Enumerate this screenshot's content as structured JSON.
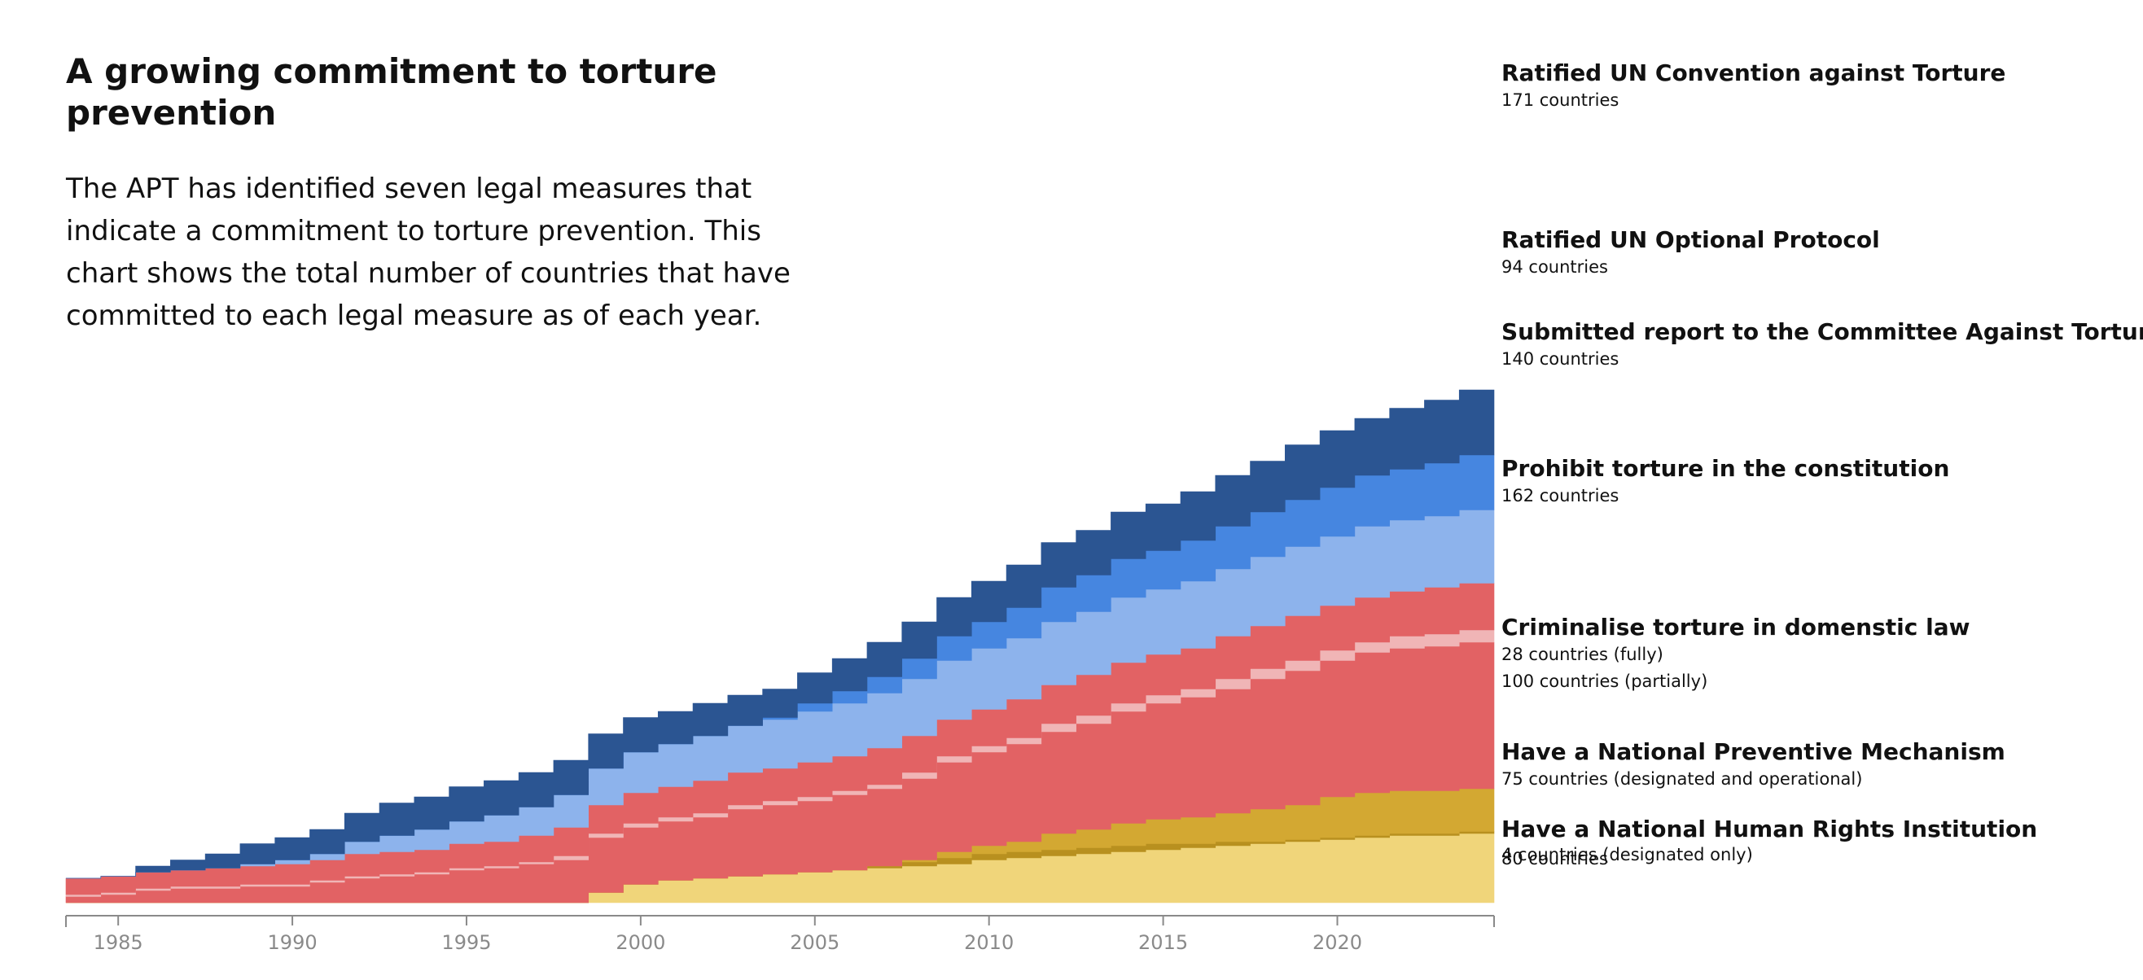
{
  "title": "A growing commitment to torture prevention",
  "subtitle": "The APT has identified seven legal measures that indicate a commitment to torture prevention. This chart shows the total number of countries that have committed to each legal measure as of each year.",
  "chart_data": {
    "type": "area",
    "title": "A growing commitment to torture prevention",
    "xlabel": "",
    "ylabel": "",
    "stacked": true,
    "step": true,
    "grid": false,
    "legend": "direct labels right",
    "xlim": [
      1983.5,
      2024.5
    ],
    "xticks": [
      1985,
      1990,
      1995,
      2000,
      2005,
      2010,
      2015,
      2020
    ],
    "x": [
      1984,
      1985,
      1986,
      1987,
      1988,
      1989,
      1990,
      1991,
      1992,
      1993,
      1994,
      1995,
      1996,
      1997,
      1998,
      1999,
      2000,
      2001,
      2002,
      2003,
      2004,
      2005,
      2006,
      2007,
      2008,
      2009,
      2010,
      2011,
      2012,
      2013,
      2014,
      2015,
      2016,
      2017,
      2018,
      2019,
      2020,
      2021,
      2022,
      2023,
      2024
    ],
    "series": [
      {
        "name": "Have a National Human Rights Institution",
        "color": "#f0d57a",
        "values": [
          0,
          0,
          0,
          0,
          0,
          0,
          0,
          0,
          0,
          0,
          0,
          0,
          0,
          0,
          0,
          5,
          9,
          11,
          12,
          13,
          14,
          15,
          16,
          17,
          18,
          19,
          21,
          22,
          23,
          24,
          25,
          26,
          27,
          28,
          29,
          30,
          31,
          32,
          33,
          33,
          34
        ]
      },
      {
        "name": "Have a National Human Rights Institution (designated only)",
        "color": "#b8901f",
        "values": [
          0,
          0,
          0,
          0,
          0,
          0,
          0,
          0,
          0,
          0,
          0,
          0,
          0,
          0,
          0,
          0,
          0,
          0,
          0,
          0,
          0,
          0,
          0,
          1,
          2,
          3,
          3,
          3,
          3,
          3,
          3,
          3,
          2,
          2,
          1,
          1,
          1,
          1,
          1,
          1,
          1
        ]
      },
      {
        "name": "Have a National Preventive Mechanism",
        "color": "#d3a832",
        "values": [
          0,
          0,
          0,
          0,
          0,
          0,
          0,
          0,
          0,
          0,
          0,
          0,
          0,
          0,
          0,
          0,
          0,
          0,
          0,
          0,
          0,
          0,
          0,
          0,
          1,
          3,
          4,
          5,
          8,
          9,
          11,
          12,
          13,
          14,
          16,
          17,
          20,
          21,
          21,
          21,
          21
        ]
      },
      {
        "name": "Criminalise torture in domestic law (partially)",
        "color": "#e26264",
        "values": [
          3,
          4,
          6,
          7,
          7,
          8,
          8,
          10,
          12,
          13,
          14,
          16,
          17,
          19,
          21,
          27,
          28,
          29,
          30,
          33,
          34,
          35,
          37,
          38,
          40,
          44,
          46,
          48,
          50,
          52,
          55,
          57,
          59,
          61,
          64,
          66,
          67,
          69,
          70,
          71,
          72
        ]
      },
      {
        "name": "Criminalise torture in domestic law (fully)",
        "color": "#f0b5b6",
        "values": [
          1,
          1,
          1,
          1,
          1,
          1,
          1,
          1,
          1,
          1,
          1,
          1,
          1,
          1,
          2,
          2,
          2,
          2,
          2,
          2,
          2,
          2,
          2,
          2,
          3,
          3,
          3,
          3,
          4,
          4,
          4,
          4,
          4,
          5,
          5,
          5,
          5,
          5,
          6,
          6,
          6
        ]
      },
      {
        "name": "Prohibit torture in the constitution",
        "color": "#e26264",
        "values": [
          8,
          8,
          8,
          8,
          9,
          9,
          10,
          10,
          11,
          11,
          11,
          12,
          12,
          13,
          14,
          14,
          15,
          15,
          16,
          16,
          16,
          17,
          17,
          18,
          18,
          18,
          18,
          19,
          19,
          20,
          20,
          20,
          20,
          21,
          21,
          22,
          22,
          22,
          22,
          23,
          23
        ]
      },
      {
        "name": "Submitted report to the Committee Against Torture",
        "color": "#8db3ec",
        "values": [
          0,
          0,
          0,
          0,
          0,
          1,
          2,
          3,
          6,
          8,
          10,
          11,
          13,
          14,
          16,
          18,
          20,
          21,
          22,
          23,
          24,
          25,
          26,
          27,
          28,
          29,
          30,
          30,
          31,
          31,
          32,
          32,
          33,
          33,
          34,
          34,
          34,
          35,
          35,
          35,
          36
        ]
      },
      {
        "name": "Ratified UN Optional Protocol",
        "color": "#4686e0",
        "values": [
          0,
          0,
          0,
          0,
          0,
          0,
          0,
          0,
          0,
          0,
          0,
          0,
          0,
          0,
          0,
          0,
          0,
          0,
          0,
          0,
          1,
          4,
          6,
          8,
          10,
          12,
          13,
          15,
          17,
          18,
          19,
          19,
          20,
          21,
          22,
          23,
          24,
          25,
          25,
          26,
          27
        ]
      },
      {
        "name": "Ratified UN Convention against Torture",
        "color": "#2b5592",
        "values": [
          0,
          0,
          3,
          5,
          7,
          10,
          11,
          12,
          14,
          16,
          16,
          17,
          17,
          17,
          17,
          17,
          17,
          16,
          16,
          15,
          14,
          15,
          16,
          17,
          18,
          19,
          20,
          21,
          22,
          22,
          23,
          23,
          24,
          25,
          25,
          27,
          28,
          28,
          30,
          31,
          32
        ]
      }
    ],
    "labels": [
      {
        "title": "Ratified UN Convention against Torture",
        "lines": [
          "171 countries"
        ]
      },
      {
        "title": "Ratified UN Optional Protocol",
        "lines": [
          "94 countries"
        ]
      },
      {
        "title": "Submitted report to the Committee Against Torture",
        "lines": [
          "140 countries"
        ]
      },
      {
        "title": "Prohibit torture in the constitution",
        "lines": [
          "162 countries"
        ]
      },
      {
        "title": "Criminalise torture in domenstic law",
        "lines": [
          "28 countries (fully)",
          "100 countries (partially)"
        ]
      },
      {
        "title": "Have a National Preventive Mechanism",
        "lines": [
          "75 countries (designated and operational)"
        ]
      },
      {
        "title": "Have a National Human Rights Institution",
        "lines": [
          "4 countries (designated only)",
          "80 countries"
        ]
      }
    ]
  }
}
